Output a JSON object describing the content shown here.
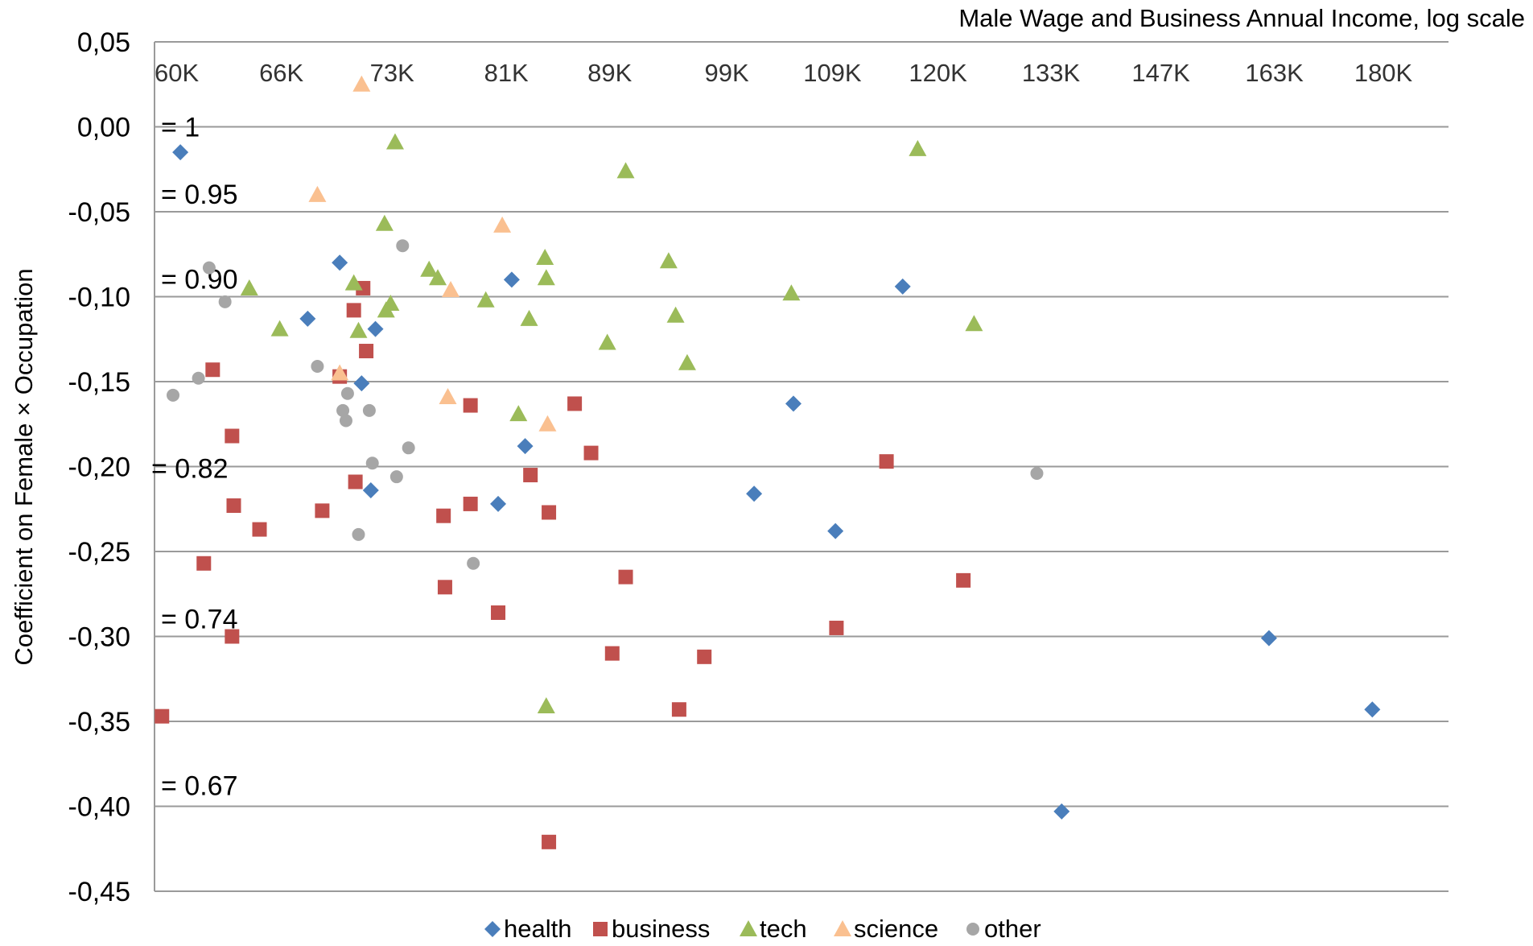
{
  "chart_data": {
    "type": "scatter",
    "title": "Male Wage and Business Annual Income, log scale",
    "ylabel": "Coefficient on Female × Occupation",
    "ylim": [
      -0.45,
      0.05
    ],
    "yticks": [
      0.05,
      0.0,
      -0.05,
      -0.1,
      -0.15,
      -0.2,
      -0.25,
      -0.3,
      -0.35,
      -0.4,
      -0.45
    ],
    "ytick_labels": [
      "0,05",
      "0,00",
      "-0,05",
      "-0,10",
      "-0,15",
      "-0,20",
      "-0,25",
      "-0,30",
      "-0,35",
      "-0,40",
      "-0,45"
    ],
    "x_scale": "log",
    "xlim": [
      58800,
      191000
    ],
    "xticks": [
      60000,
      66000,
      73000,
      81000,
      89000,
      99000,
      109000,
      120000,
      133000,
      147000,
      163000,
      180000
    ],
    "xtick_labels": [
      "60K",
      "66K",
      "73K",
      "81K",
      "89K",
      "99K",
      "109K",
      "120K",
      "133K",
      "147K",
      "163K",
      "180K"
    ],
    "grid": "horizontal",
    "legend_position": "bottom",
    "annotations": [
      {
        "text": "= 1",
        "y": 0.0
      },
      {
        "text": "= 0.95",
        "y": -0.05
      },
      {
        "text": "= 0.90",
        "y": -0.1
      },
      {
        "text": "= 0.82",
        "y": -0.2
      },
      {
        "text": "= 0.74",
        "y": -0.3
      },
      {
        "text": "= 0.67",
        "y": -0.4
      }
    ],
    "series": [
      {
        "name": "health",
        "color": "#4a7ebb",
        "marker": "diamond",
        "points": [
          [
            60200,
            -0.015
          ],
          [
            67600,
            -0.113
          ],
          [
            69600,
            -0.08
          ],
          [
            71900,
            -0.119
          ],
          [
            71000,
            -0.151
          ],
          [
            71600,
            -0.214
          ],
          [
            81400,
            -0.09
          ],
          [
            82400,
            -0.188
          ],
          [
            80400,
            -0.222
          ],
          [
            101500,
            -0.216
          ],
          [
            109300,
            -0.238
          ],
          [
            105200,
            -0.163
          ],
          [
            116200,
            -0.094
          ],
          [
            134300,
            -0.403
          ],
          [
            162200,
            -0.301
          ],
          [
            178200,
            -0.343
          ]
        ]
      },
      {
        "name": "business",
        "color": "#c0504d",
        "marker": "square",
        "points": [
          [
            59200,
            -0.347
          ],
          [
            61500,
            -0.257
          ],
          [
            62000,
            -0.143
          ],
          [
            63100,
            -0.182
          ],
          [
            63200,
            -0.223
          ],
          [
            63100,
            -0.3
          ],
          [
            64700,
            -0.237
          ],
          [
            68500,
            -0.226
          ],
          [
            70500,
            -0.108
          ],
          [
            71100,
            -0.095
          ],
          [
            71300,
            -0.132
          ],
          [
            69600,
            -0.147
          ],
          [
            70600,
            -0.209
          ],
          [
            76500,
            -0.229
          ],
          [
            76600,
            -0.271
          ],
          [
            78400,
            -0.164
          ],
          [
            78400,
            -0.222
          ],
          [
            80400,
            -0.286
          ],
          [
            82800,
            -0.205
          ],
          [
            84200,
            -0.227
          ],
          [
            84200,
            -0.421
          ],
          [
            86200,
            -0.163
          ],
          [
            87500,
            -0.192
          ],
          [
            89200,
            -0.31
          ],
          [
            90300,
            -0.265
          ],
          [
            94800,
            -0.343
          ],
          [
            97000,
            -0.312
          ],
          [
            109400,
            -0.295
          ],
          [
            114500,
            -0.197
          ],
          [
            122800,
            -0.267
          ]
        ]
      },
      {
        "name": "tech",
        "color": "#9bbb59",
        "marker": "triangle",
        "points": [
          [
            64100,
            -0.095
          ],
          [
            65900,
            -0.119
          ],
          [
            70500,
            -0.092
          ],
          [
            70800,
            -0.12
          ],
          [
            72600,
            -0.108
          ],
          [
            72500,
            -0.057
          ],
          [
            73200,
            -0.009
          ],
          [
            72900,
            -0.104
          ],
          [
            75500,
            -0.084
          ],
          [
            76100,
            -0.089
          ],
          [
            79500,
            -0.102
          ],
          [
            81900,
            -0.169
          ],
          [
            82700,
            -0.113
          ],
          [
            83900,
            -0.077
          ],
          [
            84000,
            -0.089
          ],
          [
            84000,
            -0.341
          ],
          [
            88800,
            -0.127
          ],
          [
            90300,
            -0.026
          ],
          [
            93900,
            -0.079
          ],
          [
            94500,
            -0.111
          ],
          [
            95500,
            -0.139
          ],
          [
            105000,
            -0.098
          ],
          [
            117800,
            -0.013
          ],
          [
            124000,
            -0.116
          ]
        ]
      },
      {
        "name": "science",
        "color": "#fac090",
        "marker": "triangle",
        "points": [
          [
            68200,
            -0.04
          ],
          [
            71000,
            0.025
          ],
          [
            69600,
            -0.145
          ],
          [
            77000,
            -0.096
          ],
          [
            76800,
            -0.159
          ],
          [
            80700,
            -0.058
          ],
          [
            84100,
            -0.175
          ]
        ]
      },
      {
        "name": "other",
        "color": "#a6a6a6",
        "marker": "circle",
        "points": [
          [
            59800,
            -0.158
          ],
          [
            61200,
            -0.148
          ],
          [
            61800,
            -0.083
          ],
          [
            62700,
            -0.103
          ],
          [
            68200,
            -0.141
          ],
          [
            69800,
            -0.167
          ],
          [
            70100,
            -0.157
          ],
          [
            70000,
            -0.173
          ],
          [
            70800,
            -0.24
          ],
          [
            71500,
            -0.167
          ],
          [
            71700,
            -0.198
          ],
          [
            73700,
            -0.07
          ],
          [
            73300,
            -0.206
          ],
          [
            74100,
            -0.189
          ],
          [
            78600,
            -0.257
          ],
          [
            131300,
            -0.204
          ]
        ]
      }
    ]
  }
}
